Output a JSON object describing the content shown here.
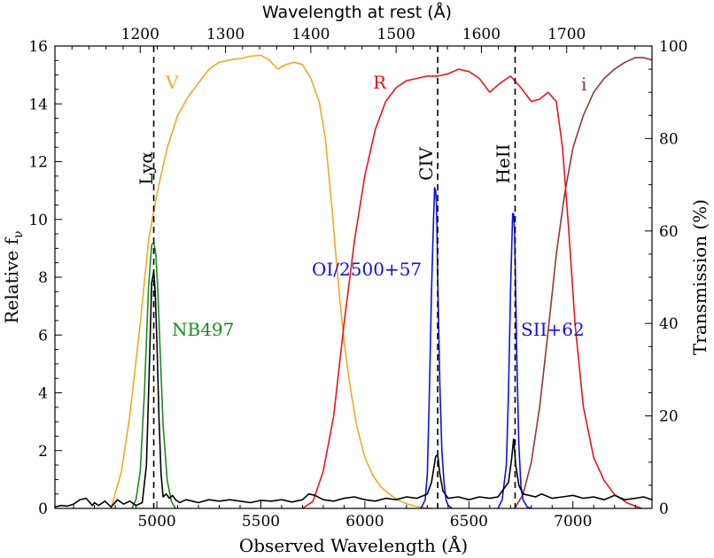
{
  "chart_data": {
    "type": "line",
    "title": "",
    "xlabel": "Observed Wavelength (Å)",
    "ylabel_left": "Relative f",
    "ylabel_left_sub": "ν",
    "ylabel_right": "Transmission (%)",
    "xlabel_top": "Wavelength at rest (Å)",
    "xlim": [
      4510,
      7380
    ],
    "ylim_left": [
      0,
      16
    ],
    "ylim_right": [
      0,
      100
    ],
    "redshift_factor": 3.1,
    "x_ticks": [
      5000,
      5500,
      6000,
      6500,
      7000
    ],
    "x_tick_labels": [
      "5000",
      "5500",
      "6000",
      "6500",
      "7000"
    ],
    "y_left_ticks": [
      0,
      2,
      4,
      6,
      8,
      10,
      12,
      14,
      16
    ],
    "y_left_tick_labels": [
      "0",
      "2",
      "4",
      "6",
      "8",
      "10",
      "12",
      "14",
      "16"
    ],
    "y_right_ticks": [
      0,
      20,
      40,
      60,
      80,
      100
    ],
    "y_right_tick_labels": [
      "0",
      "20",
      "40",
      "60",
      "80",
      "100"
    ],
    "top_ticks": [
      1200,
      1300,
      1400,
      1500,
      1600,
      1700
    ],
    "top_tick_labels": [
      "1200",
      "1300",
      "1400",
      "1500",
      "1600",
      "1700"
    ],
    "colors": {
      "V": "#f5a623",
      "R": "#e8141b",
      "i": "#993333",
      "NB497": "#1a8c1a",
      "lines": "#1010e0",
      "spectrum": "#000000"
    },
    "filters": [
      {
        "name": "V",
        "axis": "right",
        "color_key": "V",
        "x": [
          4780,
          4830,
          4870,
          4920,
          4960,
          5000,
          5050,
          5100,
          5150,
          5200,
          5250,
          5300,
          5350,
          5400,
          5450,
          5500,
          5540,
          5580,
          5620,
          5660,
          5700,
          5740,
          5780,
          5810,
          5840,
          5860,
          5880,
          5900,
          5930,
          5960,
          6000,
          6040,
          6080,
          6120,
          6160,
          6200,
          6240,
          6280,
          6320
        ],
        "y": [
          0,
          8,
          20,
          40,
          58,
          68,
          78,
          85,
          89,
          92,
          95,
          96.5,
          97,
          97.3,
          97.8,
          98,
          97,
          95,
          96,
          96.5,
          96,
          93,
          88,
          80,
          66,
          55,
          45,
          36,
          26,
          18,
          11,
          7,
          4.5,
          3,
          1.8,
          1,
          0.5,
          0.2,
          0
        ]
      },
      {
        "name": "R",
        "axis": "right",
        "color_key": "R",
        "x": [
          5700,
          5750,
          5800,
          5850,
          5900,
          5950,
          6000,
          6050,
          6100,
          6150,
          6200,
          6250,
          6300,
          6350,
          6400,
          6450,
          6500,
          6550,
          6600,
          6650,
          6700,
          6750,
          6800,
          6840,
          6880,
          6920,
          6950,
          6980,
          7010,
          7050,
          7100,
          7150,
          7200,
          7260,
          7330
        ],
        "y": [
          0,
          1.5,
          8,
          20,
          40,
          58,
          72,
          82,
          88,
          91,
          92.5,
          93,
          93.5,
          93.5,
          94,
          95,
          94.5,
          93,
          90,
          92,
          93.5,
          91,
          88,
          88.5,
          90,
          88,
          78,
          60,
          40,
          22,
          11,
          6,
          3,
          1.2,
          0
        ]
      },
      {
        "name": "i",
        "axis": "right",
        "color_key": "i",
        "x": [
          6720,
          6760,
          6800,
          6840,
          6880,
          6920,
          6960,
          7000,
          7050,
          7100,
          7150,
          7200,
          7250,
          7300,
          7340,
          7380
        ],
        "y": [
          0,
          3,
          10,
          22,
          38,
          55,
          68,
          78,
          85,
          90,
          93,
          95,
          96.5,
          97.5,
          97.5,
          97
        ]
      },
      {
        "name": "NB497",
        "axis": "right",
        "color_key": "NB497",
        "x": [
          4880,
          4900,
          4920,
          4940,
          4960,
          4975,
          4985,
          4995,
          5005,
          5015,
          5030,
          5050,
          5070,
          5090
        ],
        "y": [
          0,
          2,
          8,
          25,
          48,
          57,
          57.5,
          55,
          47,
          35,
          18,
          6,
          1.5,
          0
        ]
      }
    ],
    "spectrum": {
      "name": "composite",
      "axis": "left",
      "color_key": "spectrum",
      "x": [
        4510,
        4540,
        4570,
        4600,
        4630,
        4660,
        4690,
        4700,
        4720,
        4750,
        4780,
        4810,
        4840,
        4870,
        4900,
        4930,
        4950,
        4965,
        4975,
        4985,
        4992,
        5000,
        5010,
        5020,
        5030,
        5045,
        5060,
        5075,
        5090,
        5110,
        5140,
        5170,
        5200,
        5250,
        5300,
        5350,
        5400,
        5450,
        5500,
        5550,
        5600,
        5650,
        5700,
        5730,
        5760,
        5800,
        5850,
        5900,
        5950,
        6000,
        6050,
        6100,
        6150,
        6200,
        6250,
        6300,
        6320,
        6340,
        6350,
        6360,
        6375,
        6400,
        6450,
        6500,
        6550,
        6600,
        6640,
        6660,
        6690,
        6705,
        6715,
        6725,
        6740,
        6760,
        6790,
        6820,
        6850,
        6900,
        6950,
        7000,
        7050,
        7100,
        7150,
        7200,
        7250,
        7300,
        7340,
        7380
      ],
      "y": [
        0.05,
        0.1,
        0.08,
        0.15,
        0.3,
        0.35,
        0.1,
        0.2,
        0.1,
        0.25,
        0.05,
        0.3,
        0.15,
        0.25,
        0.1,
        0.2,
        1.5,
        5.2,
        7.8,
        8.2,
        7.5,
        5.8,
        3.2,
        1.2,
        0.4,
        0.5,
        0.35,
        0.45,
        0.3,
        0.2,
        0.3,
        0.25,
        0.2,
        0.3,
        0.25,
        0.3,
        0.25,
        0.2,
        0.28,
        0.25,
        0.3,
        0.22,
        0.3,
        0.5,
        0.45,
        0.3,
        0.25,
        0.35,
        0.4,
        0.3,
        0.25,
        0.35,
        0.3,
        0.4,
        0.35,
        0.5,
        0.9,
        1.8,
        1.85,
        1.2,
        0.6,
        0.35,
        0.4,
        0.3,
        0.4,
        0.35,
        0.4,
        0.6,
        0.9,
        1.7,
        2.4,
        1.5,
        0.8,
        0.5,
        0.45,
        0.4,
        0.5,
        0.35,
        0.4,
        0.45,
        0.35,
        0.4,
        0.3,
        0.45,
        0.3,
        0.35,
        0.4,
        0.3
      ]
    },
    "emission_models": [
      {
        "name": "OI/2500+57",
        "axis": "left",
        "color_key": "lines",
        "x": [
          6270,
          6290,
          6300,
          6310,
          6320,
          6330,
          6335,
          6340,
          6345,
          6350,
          6360,
          6370,
          6380,
          6390,
          6400,
          6420
        ],
        "y": [
          0,
          0.3,
          1.2,
          4,
          7.5,
          10,
          11.1,
          11,
          10.4,
          8,
          4.3,
          2,
          0.9,
          0.3,
          0.1,
          0
        ]
      },
      {
        "name": "SII+62",
        "axis": "left",
        "color_key": "lines",
        "x": [
          6640,
          6660,
          6680,
          6690,
          6700,
          6710,
          6715,
          6720,
          6730,
          6740,
          6750,
          6760,
          6780,
          6800
        ],
        "y": [
          0,
          0.3,
          1.5,
          4,
          7.5,
          10.2,
          10.2,
          9.5,
          5.2,
          2.2,
          0.8,
          0.3,
          0.05,
          0
        ]
      }
    ],
    "reference_lines": [
      {
        "label": "Lyα",
        "x": 4985
      },
      {
        "label": "CIV",
        "x": 6350
      },
      {
        "label": "HeII",
        "x": 6722
      }
    ],
    "annotations": [
      {
        "text": "V",
        "color_key": "V"
      },
      {
        "text": "R",
        "color_key": "R"
      },
      {
        "text": "i",
        "color_key": "i"
      },
      {
        "text": "NB497",
        "color_key": "NB497"
      },
      {
        "text": "OI/2500+57",
        "color_key": "lines"
      },
      {
        "text": "SII+62",
        "color_key": "lines"
      }
    ]
  }
}
